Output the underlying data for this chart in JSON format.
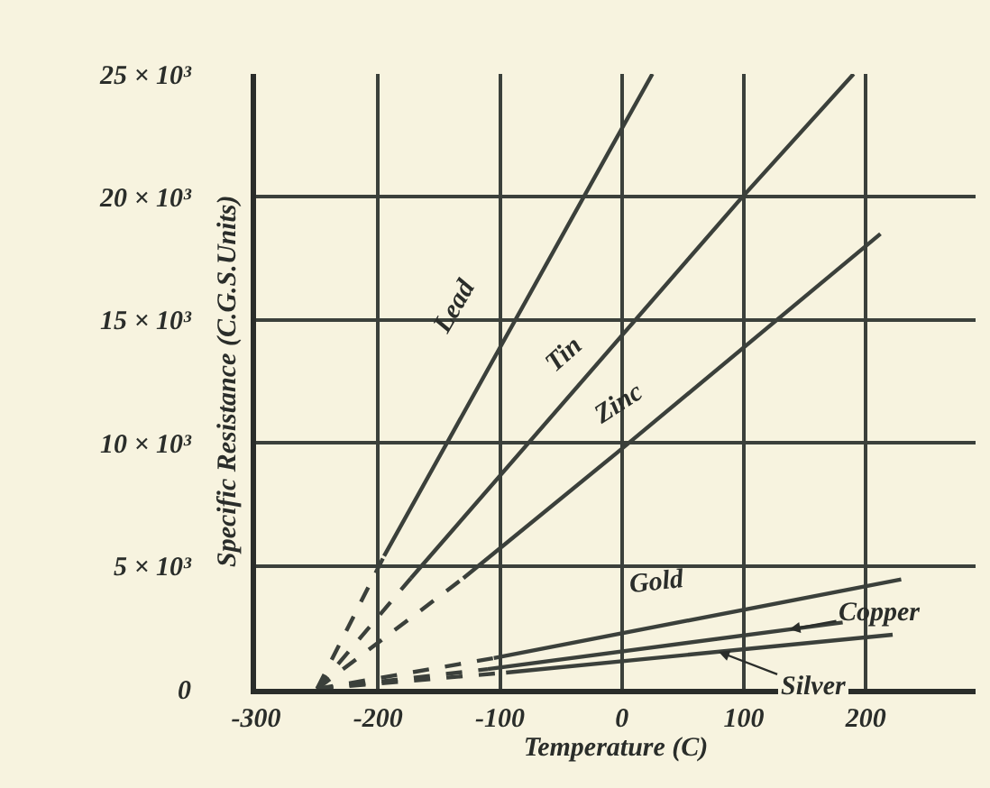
{
  "chart_data": {
    "type": "line",
    "xlabel": "Temperature (C)",
    "ylabel": "Specific Resistance (C.G.S.Units)",
    "xlim": [
      -300,
      290
    ],
    "xticks": [
      -300,
      -200,
      -100,
      0,
      100,
      200
    ],
    "ylim": [
      0,
      25000
    ],
    "yticks": [
      {
        "value": 0,
        "label": "0"
      },
      {
        "value": 5000,
        "label": "5 × 10³"
      },
      {
        "value": 10000,
        "label": "10 × 10³"
      },
      {
        "value": 15000,
        "label": "15 × 10³"
      },
      {
        "value": 20000,
        "label": "20 × 10³"
      },
      {
        "value": 25000,
        "label": "25 × 10³"
      }
    ],
    "grid": true,
    "marker": "none",
    "series": [
      {
        "name": "Lead",
        "color": "#3b403b",
        "line_style": "solid",
        "x": [
          -195,
          -10,
          25
        ],
        "values": [
          5400,
          21900,
          25000
        ]
      },
      {
        "color": "#3b403b",
        "line_style": "dashed",
        "x": [
          -250,
          -195
        ],
        "values": [
          0,
          5400
        ]
      },
      {
        "name": "Tin",
        "color": "#3b403b",
        "line_style": "solid",
        "x": [
          -173,
          97,
          190
        ],
        "values": [
          4500,
          19900,
          25000
        ]
      },
      {
        "color": "#3b403b",
        "line_style": "dashed",
        "x": [
          -250,
          -173
        ],
        "values": [
          0,
          4500
        ]
      },
      {
        "name": "Zinc",
        "color": "#3b403b",
        "line_style": "solid",
        "x": [
          -130,
          -4,
          212
        ],
        "values": [
          4500,
          9600,
          18500
        ]
      },
      {
        "color": "#3b403b",
        "line_style": "dashed",
        "x": [
          -250,
          -130
        ],
        "values": [
          0,
          4500
        ]
      },
      {
        "name": "Gold",
        "color": "#3b403b",
        "line_style": "solid",
        "x": [
          -105,
          229
        ],
        "values": [
          1250,
          4450
        ]
      },
      {
        "color": "#3b403b",
        "line_style": "dashed",
        "x": [
          -250,
          -105
        ],
        "values": [
          0,
          1250
        ]
      },
      {
        "name": "Copper",
        "color": "#3b403b",
        "line_style": "solid",
        "x": [
          -110,
          181
        ],
        "values": [
          800,
          2700
        ]
      },
      {
        "color": "#3b403b",
        "line_style": "dashed",
        "x": [
          -250,
          -110
        ],
        "values": [
          0,
          800
        ]
      },
      {
        "name": "Silver",
        "color": "#3b403b",
        "line_style": "solid",
        "x": [
          -95,
          222
        ],
        "values": [
          660,
          2200
        ]
      },
      {
        "color": "#3b403b",
        "line_style": "dashed",
        "x": [
          -250,
          -95
        ],
        "values": [
          0,
          660
        ]
      }
    ]
  }
}
